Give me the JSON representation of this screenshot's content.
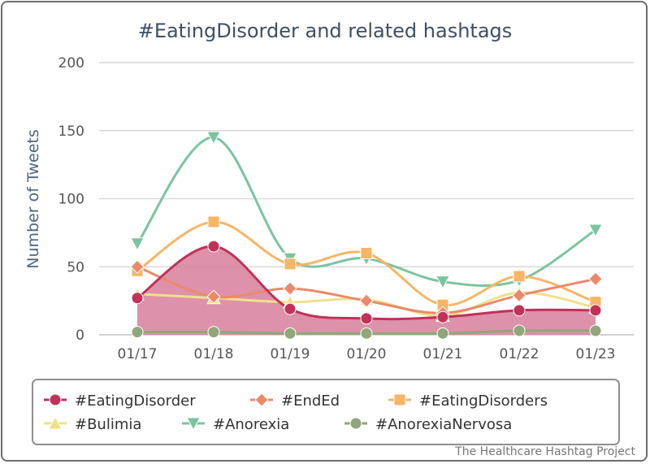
{
  "chart_data": {
    "type": "line",
    "title": "#EatingDisorder and related hashtags",
    "ylabel": "Number of Tweets",
    "xlabel": "",
    "categories": [
      "01/17",
      "01/18",
      "01/19",
      "01/20",
      "01/21",
      "01/22",
      "01/23"
    ],
    "ylim": [
      0,
      200
    ],
    "yticks": [
      0,
      50,
      100,
      150,
      200
    ],
    "grid": true,
    "legend_position": "bottom",
    "series": [
      {
        "name": "#EatingDisorder",
        "color": "#c0325a",
        "marker": "circle",
        "area": true,
        "area_color": "#d77e9b",
        "values": [
          27,
          65,
          19,
          12,
          13,
          18,
          18
        ]
      },
      {
        "name": "#EndEd",
        "color": "#ea8a6a",
        "marker": "diamond",
        "values": [
          50,
          28,
          34,
          25,
          16,
          29,
          41
        ]
      },
      {
        "name": "#EatingDisorders",
        "color": "#f7b566",
        "marker": "square",
        "values": [
          47,
          83,
          52,
          60,
          22,
          43,
          24
        ]
      },
      {
        "name": "#Bulimia",
        "color": "#f0e08a",
        "marker": "triangle",
        "values": [
          30,
          27,
          24,
          26,
          14,
          31,
          20
        ]
      },
      {
        "name": "#Anorexia",
        "color": "#7bc4a0",
        "marker": "triangle-down",
        "values": [
          67,
          145,
          56,
          56,
          39,
          40,
          77
        ]
      },
      {
        "name": "#AnorexiaNervosa",
        "color": "#8fa77a",
        "marker": "circle",
        "values": [
          2,
          2,
          1,
          1,
          1,
          3,
          3
        ]
      }
    ],
    "credit": "The Healthcare Hashtag Project"
  }
}
